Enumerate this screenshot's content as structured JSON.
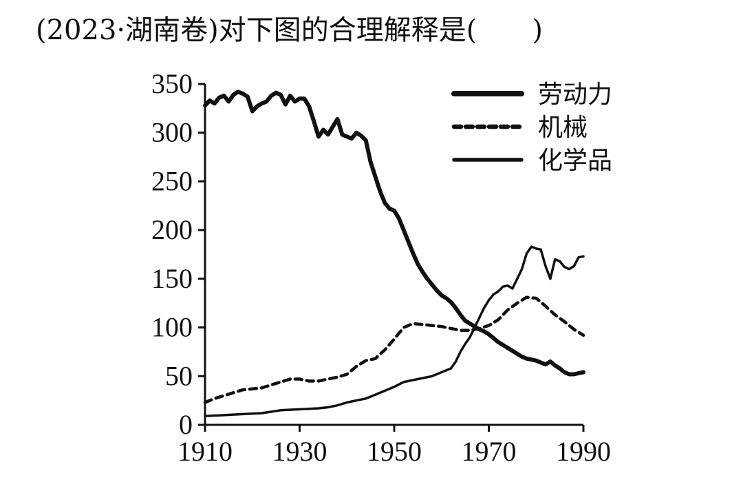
{
  "question": "(2023·湖南卷)对下图的合理解释是(　　)",
  "chart_data": {
    "type": "line",
    "title": "",
    "xlabel": "",
    "ylabel": "",
    "xlim": [
      1910,
      1990
    ],
    "ylim": [
      0,
      350
    ],
    "x_ticks": [
      1910,
      1930,
      1950,
      1970,
      1990
    ],
    "y_ticks": [
      0,
      50,
      100,
      150,
      200,
      250,
      300,
      350
    ],
    "grid": false,
    "legend_position": "top-right",
    "series": [
      {
        "name": "劳动力",
        "style": "thick-solid",
        "color": "#111111",
        "points": [
          [
            1910,
            328
          ],
          [
            1911,
            333
          ],
          [
            1912,
            330
          ],
          [
            1913,
            336
          ],
          [
            1914,
            338
          ],
          [
            1915,
            332
          ],
          [
            1916,
            339
          ],
          [
            1917,
            342
          ],
          [
            1918,
            340
          ],
          [
            1919,
            337
          ],
          [
            1920,
            322
          ],
          [
            1921,
            327
          ],
          [
            1922,
            330
          ],
          [
            1923,
            332
          ],
          [
            1924,
            338
          ],
          [
            1925,
            341
          ],
          [
            1926,
            339
          ],
          [
            1927,
            329
          ],
          [
            1928,
            338
          ],
          [
            1929,
            332
          ],
          [
            1930,
            335
          ],
          [
            1931,
            335
          ],
          [
            1932,
            327
          ],
          [
            1933,
            312
          ],
          [
            1934,
            296
          ],
          [
            1935,
            303
          ],
          [
            1936,
            298
          ],
          [
            1937,
            306
          ],
          [
            1938,
            314
          ],
          [
            1939,
            298
          ],
          [
            1940,
            296
          ],
          [
            1941,
            294
          ],
          [
            1942,
            300
          ],
          [
            1943,
            297
          ],
          [
            1944,
            292
          ],
          [
            1945,
            270
          ],
          [
            1946,
            255
          ],
          [
            1947,
            240
          ],
          [
            1948,
            228
          ],
          [
            1949,
            222
          ],
          [
            1950,
            220
          ],
          [
            1951,
            212
          ],
          [
            1952,
            200
          ],
          [
            1953,
            188
          ],
          [
            1954,
            176
          ],
          [
            1955,
            165
          ],
          [
            1956,
            157
          ],
          [
            1957,
            150
          ],
          [
            1958,
            144
          ],
          [
            1959,
            138
          ],
          [
            1960,
            133
          ],
          [
            1961,
            130
          ],
          [
            1962,
            126
          ],
          [
            1963,
            120
          ],
          [
            1964,
            113
          ],
          [
            1965,
            107
          ],
          [
            1966,
            104
          ],
          [
            1967,
            101
          ],
          [
            1968,
            98
          ],
          [
            1969,
            96
          ],
          [
            1970,
            93
          ],
          [
            1971,
            89
          ],
          [
            1972,
            85
          ],
          [
            1973,
            82
          ],
          [
            1974,
            79
          ],
          [
            1975,
            76
          ],
          [
            1976,
            73
          ],
          [
            1977,
            70
          ],
          [
            1978,
            68
          ],
          [
            1979,
            67
          ],
          [
            1980,
            66
          ],
          [
            1981,
            64
          ],
          [
            1982,
            62
          ],
          [
            1983,
            65
          ],
          [
            1984,
            61
          ],
          [
            1985,
            58
          ],
          [
            1986,
            54
          ],
          [
            1987,
            52
          ],
          [
            1988,
            52
          ],
          [
            1989,
            53
          ],
          [
            1990,
            54
          ]
        ]
      },
      {
        "name": "机械",
        "style": "dashed",
        "color": "#111111",
        "points": [
          [
            1910,
            23
          ],
          [
            1912,
            27
          ],
          [
            1914,
            30
          ],
          [
            1916,
            33
          ],
          [
            1918,
            36
          ],
          [
            1920,
            37
          ],
          [
            1922,
            38
          ],
          [
            1924,
            41
          ],
          [
            1926,
            44
          ],
          [
            1928,
            47
          ],
          [
            1930,
            47
          ],
          [
            1932,
            45
          ],
          [
            1934,
            45
          ],
          [
            1936,
            47
          ],
          [
            1938,
            49
          ],
          [
            1940,
            52
          ],
          [
            1942,
            60
          ],
          [
            1944,
            66
          ],
          [
            1946,
            68
          ],
          [
            1948,
            77
          ],
          [
            1950,
            88
          ],
          [
            1952,
            100
          ],
          [
            1954,
            104
          ],
          [
            1956,
            103
          ],
          [
            1958,
            102
          ],
          [
            1960,
            101
          ],
          [
            1962,
            99
          ],
          [
            1964,
            97
          ],
          [
            1966,
            97
          ],
          [
            1968,
            99
          ],
          [
            1970,
            102
          ],
          [
            1972,
            108
          ],
          [
            1974,
            118
          ],
          [
            1976,
            125
          ],
          [
            1978,
            131
          ],
          [
            1980,
            130
          ],
          [
            1982,
            122
          ],
          [
            1984,
            113
          ],
          [
            1986,
            106
          ],
          [
            1988,
            98
          ],
          [
            1990,
            92
          ]
        ]
      },
      {
        "name": "化学品",
        "style": "solid",
        "color": "#111111",
        "points": [
          [
            1910,
            9
          ],
          [
            1914,
            10
          ],
          [
            1918,
            11
          ],
          [
            1922,
            12
          ],
          [
            1926,
            15
          ],
          [
            1930,
            16
          ],
          [
            1934,
            17
          ],
          [
            1936,
            18
          ],
          [
            1938,
            20
          ],
          [
            1940,
            23
          ],
          [
            1942,
            25
          ],
          [
            1944,
            27
          ],
          [
            1946,
            31
          ],
          [
            1948,
            35
          ],
          [
            1950,
            39
          ],
          [
            1952,
            44
          ],
          [
            1954,
            46
          ],
          [
            1956,
            48
          ],
          [
            1958,
            50
          ],
          [
            1960,
            54
          ],
          [
            1962,
            58
          ],
          [
            1963,
            65
          ],
          [
            1964,
            75
          ],
          [
            1965,
            83
          ],
          [
            1966,
            90
          ],
          [
            1967,
            100
          ],
          [
            1968,
            110
          ],
          [
            1969,
            120
          ],
          [
            1970,
            128
          ],
          [
            1971,
            134
          ],
          [
            1972,
            137
          ],
          [
            1973,
            142
          ],
          [
            1974,
            143
          ],
          [
            1975,
            140
          ],
          [
            1976,
            150
          ],
          [
            1977,
            160
          ],
          [
            1978,
            176
          ],
          [
            1979,
            183
          ],
          [
            1980,
            181
          ],
          [
            1981,
            180
          ],
          [
            1982,
            163
          ],
          [
            1983,
            150
          ],
          [
            1984,
            170
          ],
          [
            1985,
            168
          ],
          [
            1986,
            162
          ],
          [
            1987,
            160
          ],
          [
            1988,
            163
          ],
          [
            1989,
            172
          ],
          [
            1990,
            173
          ]
        ]
      }
    ]
  }
}
